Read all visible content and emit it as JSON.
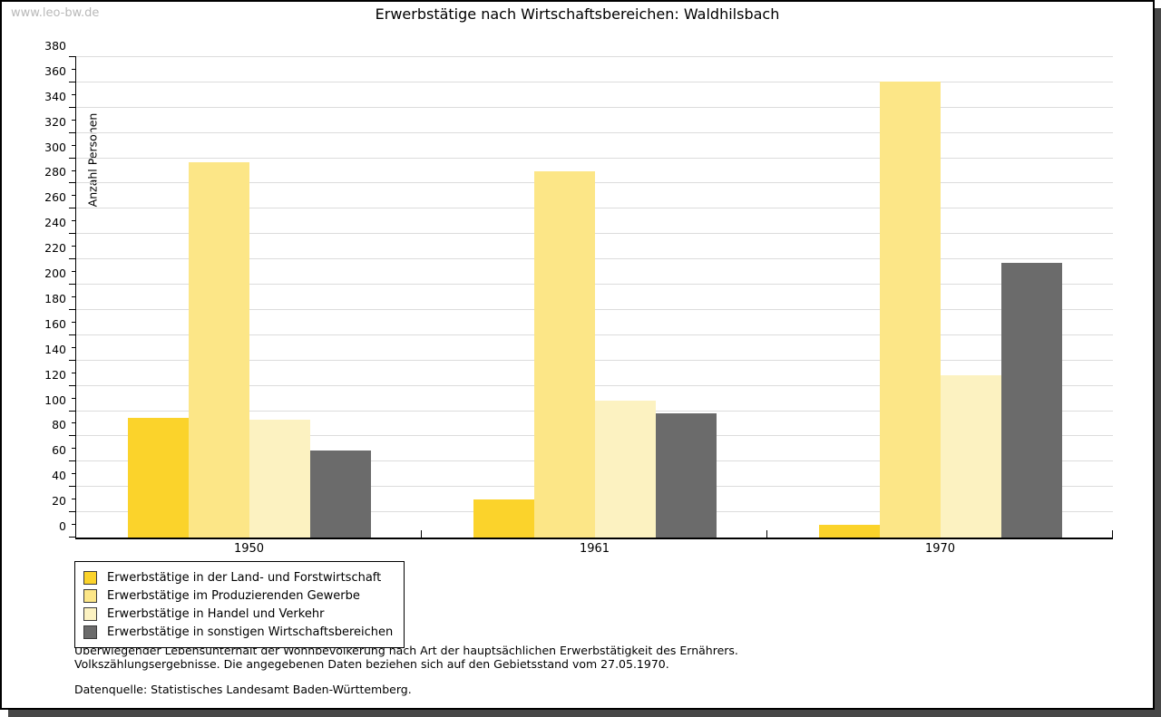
{
  "header": {
    "watermark": "www.leo-bw.de"
  },
  "chart_data": {
    "type": "bar",
    "title": "Erwerbstätige nach Wirtschaftsbereichen: Waldhilsbach",
    "ylabel": "Anzahl Personen",
    "xlabel": "",
    "categories": [
      "1950",
      "1961",
      "1970"
    ],
    "series": [
      {
        "name": "Erwerbstätige in der Land- und Forstwirtschaft",
        "color": "#fbd32b",
        "values": [
          95,
          30,
          10
        ]
      },
      {
        "name": "Erwerbstätige im Produzierenden Gewerbe",
        "color": "#fce687",
        "values": [
          297,
          290,
          361
        ]
      },
      {
        "name": "Erwerbstätige in Handel und Verkehr",
        "color": "#fcf2c1",
        "values": [
          93,
          108,
          128
        ]
      },
      {
        "name": "Erwerbstätige in sonstigen Wirtschaftsbereichen",
        "color": "#6b6b6b",
        "values": [
          69,
          98,
          217
        ]
      }
    ],
    "ylim": [
      0,
      380
    ],
    "ytick_step": 20,
    "ytick_minor_step": 10,
    "grid": true,
    "legend_position": "bottom-left"
  },
  "footer": {
    "line1": "Überwiegender Lebensunterhalt der Wohnbevölkerung nach Art der hauptsächlichen Erwerbstätigkeit des Ernährers.",
    "line2": "Volkszählungsergebnisse. Die angegebenen Daten beziehen sich auf den Gebietsstand vom 27.05.1970.",
    "source": "Datenquelle: Statistisches Landesamt Baden-Württemberg."
  }
}
